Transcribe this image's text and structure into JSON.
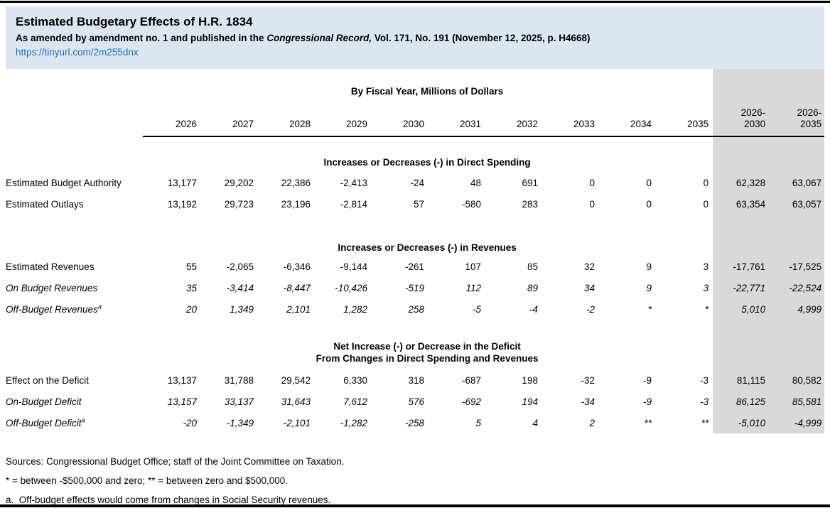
{
  "header": {
    "title": "Estimated Budgetary Effects of H.R. 1834",
    "subtitle_prefix": "As amended by amendment no. 1 and published in the ",
    "subtitle_italic": "Congressional Record,",
    "subtitle_suffix": " Vol. 171, No. 191 (November 12, 2025, p. H4668)",
    "link": "https://tinyurl.com/2m255dnx"
  },
  "colors": {
    "header_band": "#dce6f1",
    "totals_band": "#d9d9d9",
    "link_blue": "#2271b5"
  },
  "table": {
    "unit_header": "By Fiscal Year, Millions of Dollars",
    "columns": [
      {
        "text": "2026"
      },
      {
        "text": "2027"
      },
      {
        "text": "2028"
      },
      {
        "text": "2029"
      },
      {
        "text": "2030"
      },
      {
        "text": "2031"
      },
      {
        "text": "2032"
      },
      {
        "text": "2033"
      },
      {
        "text": "2034"
      },
      {
        "text": "2035"
      },
      {
        "text": "2026-",
        "text2": "2030"
      },
      {
        "text": "2026-",
        "text2": "2035"
      }
    ],
    "sections": [
      {
        "heading_lines": [
          "Increases or Decreases (-) in Direct Spending"
        ],
        "rows": [
          {
            "label": "Estimated Budget Authority",
            "sup": "",
            "italic": false,
            "values": [
              "13,177",
              "29,202",
              "22,386",
              "-2,413",
              "-24",
              "48",
              "691",
              "0",
              "0",
              "0",
              "62,328",
              "63,067"
            ]
          },
          {
            "label": "Estimated Outlays",
            "sup": "",
            "italic": false,
            "values": [
              "13,192",
              "29,723",
              "23,196",
              "-2,814",
              "57",
              "-580",
              "283",
              "0",
              "0",
              "0",
              "63,354",
              "63,057"
            ]
          }
        ]
      },
      {
        "heading_lines": [
          "Increases or Decreases (-) in Revenues"
        ],
        "rows": [
          {
            "label": "Estimated Revenues",
            "sup": "",
            "italic": false,
            "values": [
              "55",
              "-2,065",
              "-6,346",
              "-9,144",
              "-261",
              "107",
              "85",
              "32",
              "9",
              "3",
              "-17,761",
              "-17,525"
            ]
          },
          {
            "label": "On Budget Revenues",
            "sup": "",
            "italic": true,
            "values": [
              "35",
              "-3,414",
              "-8,447",
              "-10,426",
              "-519",
              "112",
              "89",
              "34",
              "9",
              "3",
              "-22,771",
              "-22,524"
            ]
          },
          {
            "label": "Off-Budget Revenues",
            "sup": "a",
            "italic": true,
            "values": [
              "20",
              "1,349",
              "2,101",
              "1,282",
              "258",
              "-5",
              "-4",
              "-2",
              "*",
              "*",
              "5,010",
              "4,999"
            ]
          }
        ]
      },
      {
        "heading_lines": [
          "Net Increase (-) or Decrease in the Deficit",
          "From Changes in Direct Spending and Revenues"
        ],
        "rows": [
          {
            "label": "Effect on the Deficit",
            "sup": "",
            "italic": false,
            "values": [
              "13,137",
              "31,788",
              "29,542",
              "6,330",
              "318",
              "-687",
              "198",
              "-32",
              "-9",
              "-3",
              "81,115",
              "80,582"
            ]
          },
          {
            "label": "On-Budget Deficit",
            "sup": "",
            "italic": true,
            "values": [
              "13,157",
              "33,137",
              "31,643",
              "7,612",
              "576",
              "-692",
              "194",
              "-34",
              "-9",
              "-3",
              "86,125",
              "85,581"
            ]
          },
          {
            "label": "Off-Budget Deficit",
            "sup": "a",
            "italic": true,
            "values": [
              "-20",
              "-1,349",
              "-2,101",
              "-1,282",
              "-258",
              "5",
              "4",
              "2",
              "**",
              "**",
              "-5,010",
              "-4,999"
            ]
          }
        ]
      }
    ]
  },
  "footnotes": [
    "Sources: Congressional Budget Office; staff of the Joint Committee on Taxation.",
    "* = between -$500,000 and zero; ** = between zero and $500,000.",
    "a.  Off-budget effects would come from changes in Social Security revenues."
  ]
}
